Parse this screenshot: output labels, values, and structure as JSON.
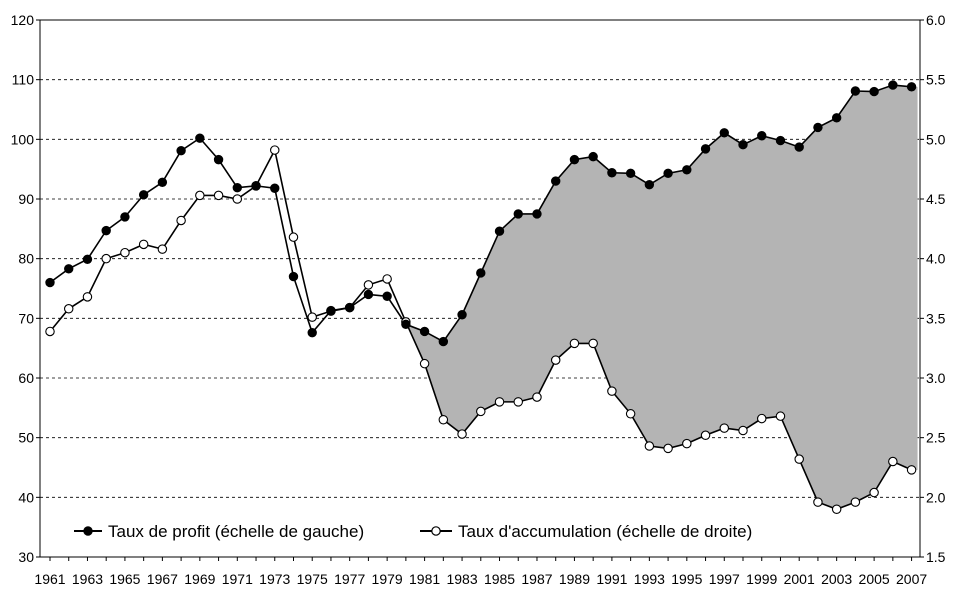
{
  "chart_data": {
    "type": "line",
    "x": [
      1961,
      1962,
      1963,
      1964,
      1965,
      1966,
      1967,
      1968,
      1969,
      1970,
      1971,
      1972,
      1973,
      1974,
      1975,
      1976,
      1977,
      1978,
      1979,
      1980,
      1981,
      1982,
      1983,
      1984,
      1985,
      1986,
      1987,
      1988,
      1989,
      1990,
      1991,
      1992,
      1993,
      1994,
      1995,
      1996,
      1997,
      1998,
      1999,
      2000,
      2001,
      2002,
      2003,
      2004,
      2005,
      2006,
      2007
    ],
    "x_tick_labels": [
      "1961",
      "1963",
      "1965",
      "1967",
      "1969",
      "1971",
      "1973",
      "1975",
      "1977",
      "1979",
      "1981",
      "1983",
      "1985",
      "1987",
      "1989",
      "1991",
      "1993",
      "1995",
      "1997",
      "1999",
      "2001",
      "2003",
      "2005",
      "2007"
    ],
    "y_left": {
      "lim": [
        30,
        120
      ],
      "ticks": [
        "30",
        "40",
        "50",
        "60",
        "70",
        "80",
        "90",
        "100",
        "110",
        "120"
      ]
    },
    "y_right": {
      "lim": [
        1.5,
        6.0
      ],
      "ticks": [
        "1.5",
        "2.0",
        "2.5",
        "3.0",
        "3.5",
        "4.0",
        "4.5",
        "5.0",
        "5.5",
        "6.0"
      ]
    },
    "grid": "horizontal dashed",
    "legend_position": "bottom-left",
    "series": [
      {
        "name": "Taux de profit (échelle de gauche)",
        "axis": "left",
        "marker": "filled",
        "values": [
          76.0,
          78.3,
          79.9,
          84.7,
          87.0,
          90.7,
          92.8,
          98.1,
          100.2,
          96.6,
          91.9,
          92.2,
          91.8,
          77.0,
          67.6,
          71.3,
          71.8,
          74.0,
          73.7,
          69.0,
          67.8,
          66.1,
          70.6,
          77.6,
          84.6,
          87.5,
          87.5,
          93.0,
          96.6,
          97.1,
          94.4,
          94.3,
          92.4,
          94.3,
          94.9,
          98.4,
          101.1,
          99.1,
          100.6,
          99.8,
          98.7,
          102.0,
          103.6,
          108.1,
          108.0,
          109.1,
          108.8
        ]
      },
      {
        "name": "Taux d'accumulation (échelle de droite)",
        "axis": "right",
        "marker": "open",
        "values": [
          3.39,
          3.58,
          3.68,
          4.0,
          4.05,
          4.12,
          4.08,
          4.32,
          4.53,
          4.53,
          4.5,
          4.61,
          4.91,
          4.18,
          3.51,
          3.56,
          3.59,
          3.78,
          3.83,
          3.47,
          3.12,
          2.65,
          2.53,
          2.72,
          2.8,
          2.8,
          2.84,
          3.15,
          3.29,
          3.29,
          2.89,
          2.7,
          2.43,
          2.41,
          2.45,
          2.52,
          2.58,
          2.56,
          2.66,
          2.68,
          2.32,
          1.96,
          1.9,
          1.96,
          2.04,
          2.3,
          2.23
        ]
      }
    ],
    "shading": "between series from 1980 to 2007 (grey)"
  },
  "colors": {
    "fill": "#b4b4b4",
    "line": "#000000",
    "open_marker": "#ffffff"
  }
}
